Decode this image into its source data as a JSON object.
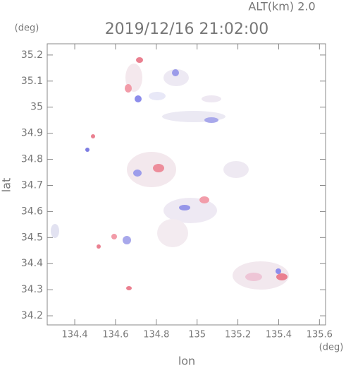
{
  "chart_data": {
    "type": "image",
    "title": "2019/12/16 21:02:00",
    "subtitle": "ALT(km) 2.0",
    "xlabel": "lon",
    "ylabel": "lat",
    "xunit": "(deg)",
    "yunit": "(deg)",
    "xlim": [
      134.265,
      135.63
    ],
    "ylim": [
      34.165,
      35.243
    ],
    "xticks": [
      134.4,
      134.6,
      134.8,
      135.0,
      135.2,
      135.4,
      135.6
    ],
    "yticks": [
      34.2,
      34.3,
      34.4,
      34.5,
      34.6,
      34.7,
      34.8,
      34.9,
      35.0,
      35.1,
      35.2
    ],
    "grid": false
  }
}
